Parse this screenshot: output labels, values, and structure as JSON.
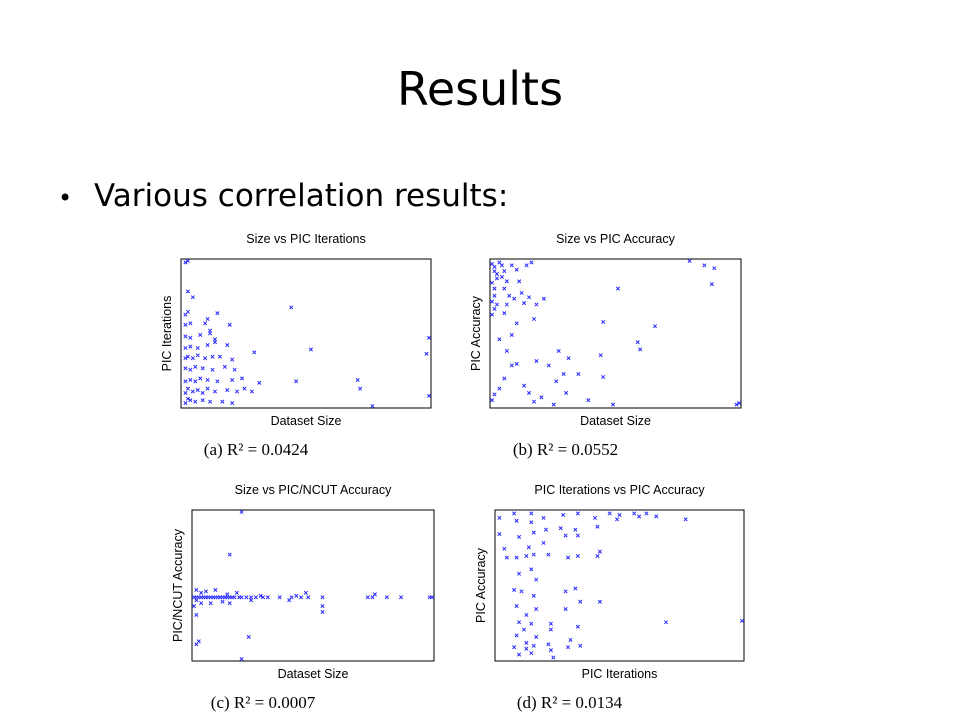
{
  "slide": {
    "title": "Results",
    "bullet": "Various correlation results:"
  },
  "colors": {
    "marker": "#2a2aff",
    "axis": "#000000"
  },
  "chart_data": [
    {
      "type": "scatter",
      "title": "Size vs PIC Iterations",
      "xlabel": "Dataset Size",
      "ylabel": "PIC Iterations",
      "caption_prefix": "(a)",
      "caption_eq": "R² = 0.0424",
      "xlim": [
        0,
        1
      ],
      "ylim": [
        0,
        1
      ],
      "grid": false,
      "points": [
        [
          0.01,
          0.02
        ],
        [
          0.02,
          0.05
        ],
        [
          0.03,
          0.04
        ],
        [
          0.05,
          0.03
        ],
        [
          0.08,
          0.04
        ],
        [
          0.11,
          0.03
        ],
        [
          0.16,
          0.03
        ],
        [
          0.2,
          0.02
        ],
        [
          0.01,
          0.09
        ],
        [
          0.02,
          0.12
        ],
        [
          0.04,
          0.1
        ],
        [
          0.06,
          0.11
        ],
        [
          0.08,
          0.09
        ],
        [
          0.1,
          0.12
        ],
        [
          0.13,
          0.1
        ],
        [
          0.18,
          0.11
        ],
        [
          0.22,
          0.1
        ],
        [
          0.25,
          0.12
        ],
        [
          0.28,
          0.1
        ],
        [
          0.01,
          0.17
        ],
        [
          0.03,
          0.18
        ],
        [
          0.05,
          0.17
        ],
        [
          0.07,
          0.19
        ],
        [
          0.1,
          0.18
        ],
        [
          0.14,
          0.17
        ],
        [
          0.2,
          0.18
        ],
        [
          0.24,
          0.19
        ],
        [
          0.31,
          0.16
        ],
        [
          0.46,
          0.17
        ],
        [
          0.01,
          0.26
        ],
        [
          0.03,
          0.25
        ],
        [
          0.05,
          0.27
        ],
        [
          0.08,
          0.26
        ],
        [
          0.12,
          0.25
        ],
        [
          0.17,
          0.27
        ],
        [
          0.21,
          0.25
        ],
        [
          0.71,
          0.18
        ],
        [
          0.72,
          0.12
        ],
        [
          0.01,
          0.33
        ],
        [
          0.02,
          0.34
        ],
        [
          0.04,
          0.33
        ],
        [
          0.06,
          0.35
        ],
        [
          0.09,
          0.33
        ],
        [
          0.12,
          0.34
        ],
        [
          0.15,
          0.34
        ],
        [
          0.2,
          0.32
        ],
        [
          0.01,
          0.4
        ],
        [
          0.03,
          0.41
        ],
        [
          0.06,
          0.4
        ],
        [
          0.1,
          0.42
        ],
        [
          0.13,
          0.44
        ],
        [
          0.18,
          0.42
        ],
        [
          0.29,
          0.37
        ],
        [
          0.01,
          0.48
        ],
        [
          0.03,
          0.47
        ],
        [
          0.07,
          0.49
        ],
        [
          0.11,
          0.5
        ],
        [
          0.13,
          0.46
        ],
        [
          0.52,
          0.39
        ],
        [
          0.99,
          0.36
        ],
        [
          1.0,
          0.07
        ],
        [
          0.01,
          0.56
        ],
        [
          0.03,
          0.57
        ],
        [
          0.09,
          0.57
        ],
        [
          1.0,
          0.47
        ],
        [
          0.01,
          0.63
        ],
        [
          0.02,
          0.65
        ],
        [
          0.14,
          0.64
        ],
        [
          0.19,
          0.56
        ],
        [
          0.1,
          0.6
        ],
        [
          0.11,
          0.52
        ],
        [
          0.44,
          0.68
        ],
        [
          0.02,
          0.79
        ],
        [
          0.04,
          0.75
        ],
        [
          0.01,
          0.99
        ],
        [
          0.02,
          1.0
        ],
        [
          0.77,
          0.0
        ]
      ]
    },
    {
      "type": "scatter",
      "title": "Size vs PIC Accuracy",
      "xlabel": "Dataset Size",
      "ylabel": "PIC Accuracy",
      "caption_prefix": "(b)",
      "caption_eq": "R² = 0.0552",
      "xlim": [
        0,
        1
      ],
      "ylim": [
        0,
        1
      ],
      "grid": false,
      "points": [
        [
          0.0,
          0.98
        ],
        [
          0.01,
          0.96
        ],
        [
          0.01,
          0.93
        ],
        [
          0.02,
          0.91
        ],
        [
          0.02,
          0.88
        ],
        [
          0.0,
          0.85
        ],
        [
          0.01,
          0.81
        ],
        [
          0.01,
          0.76
        ],
        [
          0.0,
          0.72
        ],
        [
          0.02,
          0.7
        ],
        [
          0.01,
          0.67
        ],
        [
          0.0,
          0.63
        ],
        [
          0.03,
          0.99
        ],
        [
          0.04,
          0.97
        ],
        [
          0.05,
          0.93
        ],
        [
          0.04,
          0.89
        ],
        [
          0.06,
          0.86
        ],
        [
          0.05,
          0.81
        ],
        [
          0.07,
          0.76
        ],
        [
          0.06,
          0.7
        ],
        [
          0.05,
          0.64
        ],
        [
          0.08,
          0.97
        ],
        [
          0.1,
          0.94
        ],
        [
          0.11,
          0.86
        ],
        [
          0.12,
          0.78
        ],
        [
          0.09,
          0.74
        ],
        [
          0.13,
          0.71
        ],
        [
          0.1,
          0.57
        ],
        [
          0.08,
          0.49
        ],
        [
          0.14,
          0.97
        ],
        [
          0.16,
          0.99
        ],
        [
          0.15,
          0.75
        ],
        [
          0.18,
          0.7
        ],
        [
          0.21,
          0.74
        ],
        [
          0.17,
          0.6
        ],
        [
          0.03,
          0.46
        ],
        [
          0.06,
          0.38
        ],
        [
          0.08,
          0.28
        ],
        [
          0.05,
          0.19
        ],
        [
          0.03,
          0.12
        ],
        [
          0.01,
          0.08
        ],
        [
          0.0,
          0.04
        ],
        [
          0.1,
          0.29
        ],
        [
          0.13,
          0.14
        ],
        [
          0.15,
          0.09
        ],
        [
          0.17,
          0.03
        ],
        [
          0.2,
          0.06
        ],
        [
          0.25,
          0.01
        ],
        [
          0.18,
          0.31
        ],
        [
          0.23,
          0.28
        ],
        [
          0.26,
          0.17
        ],
        [
          0.27,
          0.38
        ],
        [
          0.29,
          0.22
        ],
        [
          0.3,
          0.09
        ],
        [
          0.31,
          0.33
        ],
        [
          0.35,
          0.22
        ],
        [
          0.39,
          0.04
        ],
        [
          0.44,
          0.35
        ],
        [
          0.45,
          0.2
        ],
        [
          0.49,
          0.01
        ],
        [
          0.45,
          0.58
        ],
        [
          0.51,
          0.81
        ],
        [
          0.59,
          0.44
        ],
        [
          0.6,
          0.39
        ],
        [
          0.66,
          0.55
        ],
        [
          0.8,
          1.0
        ],
        [
          0.86,
          0.97
        ],
        [
          0.9,
          0.95
        ],
        [
          0.89,
          0.84
        ],
        [
          1.0,
          0.02
        ],
        [
          0.99,
          0.01
        ]
      ]
    },
    {
      "type": "scatter",
      "title": "Size vs PIC/NCUT Accuracy",
      "xlabel": "Dataset Size",
      "ylabel": "PIC/NCUT Accuracy",
      "caption_prefix": "(c)",
      "caption_eq": "R² = 0.0007",
      "xlim": [
        0,
        1
      ],
      "ylim": [
        0,
        1
      ],
      "grid": false,
      "points": [
        [
          0.0,
          0.42
        ],
        [
          0.01,
          0.42
        ],
        [
          0.02,
          0.42
        ],
        [
          0.03,
          0.42
        ],
        [
          0.04,
          0.42
        ],
        [
          0.05,
          0.42
        ],
        [
          0.06,
          0.42
        ],
        [
          0.07,
          0.42
        ],
        [
          0.08,
          0.42
        ],
        [
          0.09,
          0.42
        ],
        [
          0.1,
          0.42
        ],
        [
          0.11,
          0.42
        ],
        [
          0.12,
          0.42
        ],
        [
          0.13,
          0.42
        ],
        [
          0.14,
          0.42
        ],
        [
          0.15,
          0.42
        ],
        [
          0.16,
          0.42
        ],
        [
          0.17,
          0.42
        ],
        [
          0.19,
          0.42
        ],
        [
          0.2,
          0.42
        ],
        [
          0.22,
          0.42
        ],
        [
          0.24,
          0.42
        ],
        [
          0.26,
          0.42
        ],
        [
          0.29,
          0.42
        ],
        [
          0.31,
          0.42
        ],
        [
          0.36,
          0.42
        ],
        [
          0.41,
          0.42
        ],
        [
          0.45,
          0.42
        ],
        [
          0.48,
          0.42
        ],
        [
          0.54,
          0.42
        ],
        [
          0.73,
          0.42
        ],
        [
          0.75,
          0.42
        ],
        [
          0.81,
          0.42
        ],
        [
          0.87,
          0.42
        ],
        [
          0.99,
          0.42
        ],
        [
          1.0,
          0.42
        ],
        [
          0.03,
          0.45
        ],
        [
          0.05,
          0.46
        ],
        [
          0.09,
          0.47
        ],
        [
          0.14,
          0.44
        ],
        [
          0.18,
          0.45
        ],
        [
          0.28,
          0.43
        ],
        [
          0.43,
          0.43
        ],
        [
          0.47,
          0.45
        ],
        [
          0.76,
          0.44
        ],
        [
          0.03,
          0.38
        ],
        [
          0.07,
          0.38
        ],
        [
          0.12,
          0.39
        ],
        [
          0.15,
          0.38
        ],
        [
          0.24,
          0.4
        ],
        [
          0.4,
          0.4
        ],
        [
          0.54,
          0.36
        ],
        [
          0.54,
          0.32
        ],
        [
          0.01,
          0.47
        ],
        [
          0.01,
          0.4
        ],
        [
          0.0,
          0.36
        ],
        [
          0.01,
          0.3
        ],
        [
          0.15,
          0.71
        ],
        [
          0.23,
          0.15
        ],
        [
          0.2,
          1.0
        ],
        [
          0.2,
          0.0
        ],
        [
          0.02,
          0.12
        ],
        [
          0.01,
          0.1
        ]
      ]
    },
    {
      "type": "scatter",
      "title": "PIC Iterations vs PIC Accuracy",
      "xlabel": "PIC Iterations",
      "ylabel": "PIC Accuracy",
      "caption_prefix": "(d)",
      "caption_eq": "R² = 0.0134",
      "xlim": [
        0,
        1
      ],
      "ylim": [
        0,
        1
      ],
      "grid": false,
      "points": [
        [
          0.01,
          0.96
        ],
        [
          0.01,
          0.85
        ],
        [
          0.03,
          0.75
        ],
        [
          0.04,
          0.69
        ],
        [
          0.07,
          0.99
        ],
        [
          0.08,
          0.94
        ],
        [
          0.09,
          0.83
        ],
        [
          0.08,
          0.69
        ],
        [
          0.09,
          0.58
        ],
        [
          0.07,
          0.47
        ],
        [
          0.08,
          0.36
        ],
        [
          0.09,
          0.25
        ],
        [
          0.08,
          0.16
        ],
        [
          0.07,
          0.08
        ],
        [
          0.09,
          0.03
        ],
        [
          0.12,
          0.7
        ],
        [
          0.1,
          0.46
        ],
        [
          0.12,
          0.3
        ],
        [
          0.11,
          0.2
        ],
        [
          0.12,
          0.11
        ],
        [
          0.12,
          0.07
        ],
        [
          0.14,
          0.99
        ],
        [
          0.14,
          0.93
        ],
        [
          0.15,
          0.86
        ],
        [
          0.13,
          0.76
        ],
        [
          0.15,
          0.71
        ],
        [
          0.14,
          0.61
        ],
        [
          0.16,
          0.54
        ],
        [
          0.15,
          0.43
        ],
        [
          0.16,
          0.34
        ],
        [
          0.14,
          0.24
        ],
        [
          0.16,
          0.15
        ],
        [
          0.15,
          0.09
        ],
        [
          0.14,
          0.04
        ],
        [
          0.19,
          0.96
        ],
        [
          0.2,
          0.88
        ],
        [
          0.19,
          0.79
        ],
        [
          0.21,
          0.71
        ],
        [
          0.22,
          0.24
        ],
        [
          0.22,
          0.2
        ],
        [
          0.21,
          0.1
        ],
        [
          0.22,
          0.06
        ],
        [
          0.23,
          0.01
        ],
        [
          0.27,
          0.98
        ],
        [
          0.26,
          0.89
        ],
        [
          0.28,
          0.84
        ],
        [
          0.29,
          0.69
        ],
        [
          0.28,
          0.46
        ],
        [
          0.28,
          0.34
        ],
        [
          0.3,
          0.13
        ],
        [
          0.29,
          0.08
        ],
        [
          0.33,
          0.99
        ],
        [
          0.32,
          0.88
        ],
        [
          0.33,
          0.84
        ],
        [
          0.33,
          0.7
        ],
        [
          0.32,
          0.48
        ],
        [
          0.34,
          0.39
        ],
        [
          0.33,
          0.22
        ],
        [
          0.34,
          0.09
        ],
        [
          0.4,
          0.96
        ],
        [
          0.41,
          0.9
        ],
        [
          0.42,
          0.73
        ],
        [
          0.41,
          0.7
        ],
        [
          0.42,
          0.39
        ],
        [
          0.46,
          0.99
        ],
        [
          0.5,
          0.98
        ],
        [
          0.49,
          0.95
        ],
        [
          0.56,
          0.99
        ],
        [
          0.58,
          0.97
        ],
        [
          0.61,
          0.99
        ],
        [
          0.65,
          0.97
        ],
        [
          0.69,
          0.25
        ],
        [
          0.77,
          0.95
        ],
        [
          1.0,
          0.26
        ]
      ]
    }
  ]
}
